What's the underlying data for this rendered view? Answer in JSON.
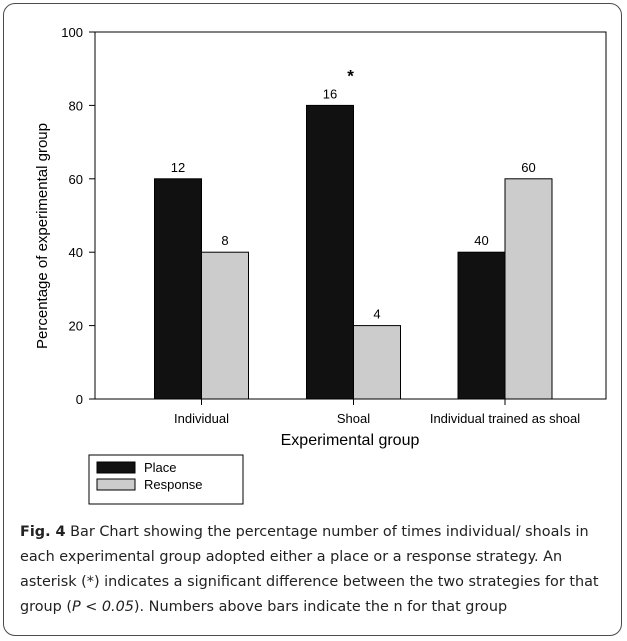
{
  "chart_data": {
    "type": "bar",
    "categories": [
      "Individual",
      "Shoal",
      "Individual trained as shoal"
    ],
    "series": [
      {
        "name": "Place",
        "values": [
          60,
          80,
          40
        ],
        "n_labels": [
          "12",
          "16",
          "40"
        ],
        "color": "#111111"
      },
      {
        "name": "Response",
        "values": [
          40,
          20,
          60
        ],
        "n_labels": [
          "8",
          "4",
          "60"
        ],
        "color": "#cccccc"
      }
    ],
    "xlabel": "Experimental group",
    "ylabel": "Percentage of experimental group",
    "ylim": [
      0,
      100
    ],
    "yticks": [
      "0",
      "20",
      "40",
      "60",
      "80",
      "100"
    ],
    "grid": false,
    "legend_position": "below-left",
    "annotations": [
      {
        "text": "*",
        "category": "Shoal"
      }
    ]
  },
  "caption": {
    "label": "Fig. 4",
    "text_before": " Bar Chart showing the percentage number of times individual/ shoals in each experimental group adopted either a place or a response strategy. An asterisk (*) indicates a significant difference between the two strategies for that group (",
    "p_text": "P",
    "p_rest": " < 0.05",
    "text_after": "). Numbers above bars indicate the n for that group"
  }
}
